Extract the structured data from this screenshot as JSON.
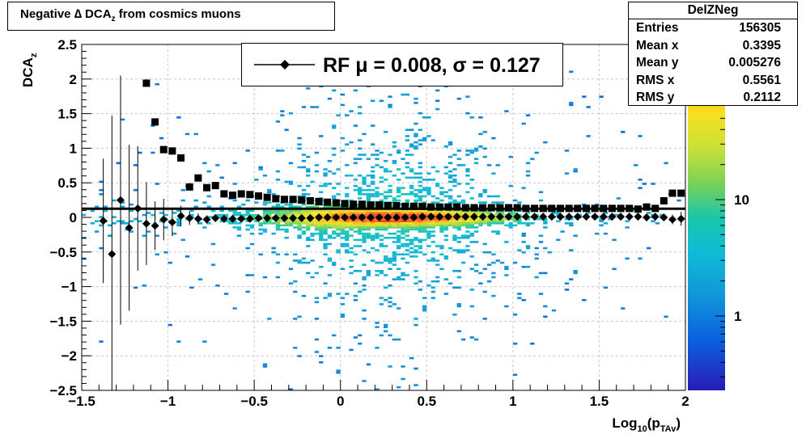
{
  "title": {
    "pre": "Negative ",
    "delta": "∆",
    "main": " DCA",
    "sub": "z",
    "post": " from cosmics muons"
  },
  "stats_box": {
    "name": "DelZNeg",
    "rows": [
      {
        "label": "Entries",
        "value": "156305"
      },
      {
        "label": "Mean x",
        "value": "0.3395"
      },
      {
        "label": "Mean y",
        "value": "0.005276"
      },
      {
        "label": "RMS x",
        "value": "0.5561"
      },
      {
        "label": "RMS y",
        "value": "0.2112"
      }
    ]
  },
  "legend": {
    "text": "RF μ =  0.008, σ =   0.127"
  },
  "colors": {
    "mean_markers": "#000000",
    "rms_markers": "#000000",
    "fit_line": "#000000"
  },
  "chart_data": {
    "type": "heatmap",
    "xlabel": {
      "base": "Log",
      "sub1": "10",
      "mid": "(p",
      "sub2": "TAv",
      "end": ")"
    },
    "ylabel": {
      "base": "DCA",
      "sub": "z"
    },
    "xlim": [
      -1.5,
      2
    ],
    "ylim": [
      -2.5,
      2.5
    ],
    "x_ticks": [
      -1.5,
      -1,
      -0.5,
      0,
      0.5,
      1,
      1.5,
      2
    ],
    "x_tick_labels": [
      "−1.5",
      "−1",
      "−0.5",
      "0",
      "0.5",
      "1",
      "1.5",
      "2"
    ],
    "y_ticks": [
      -2.5,
      -2,
      -1.5,
      -1,
      -0.5,
      0,
      0.5,
      1,
      1.5,
      2,
      2.5
    ],
    "y_tick_labels": [
      "−2.5",
      "−2",
      "−1.5",
      "−1",
      "−0.5",
      "0",
      "0.5",
      "1",
      "1.5",
      "2",
      "2.5"
    ],
    "z_scale": "log",
    "z_tick_labels": [
      {
        "value": 1,
        "label": "1"
      },
      {
        "value": 10,
        "label": "10"
      }
    ],
    "grid": true,
    "fit_line": {
      "y": 0.125
    },
    "mean_profile": {
      "marker": "diamond",
      "x": [
        -1.375,
        -1.325,
        -1.275,
        -1.225,
        -1.175,
        -1.125,
        -1.075,
        -1.025,
        -0.975,
        -0.925,
        -0.875,
        -0.825,
        -0.775,
        -0.725,
        -0.675,
        -0.625,
        -0.575,
        -0.525,
        -0.475,
        -0.425,
        -0.375,
        -0.325,
        -0.275,
        -0.225,
        -0.175,
        -0.125,
        -0.075,
        -0.025,
        0.025,
        0.075,
        0.125,
        0.175,
        0.225,
        0.275,
        0.325,
        0.375,
        0.425,
        0.475,
        0.525,
        0.575,
        0.625,
        0.675,
        0.725,
        0.775,
        0.825,
        0.875,
        0.925,
        0.975,
        1.025,
        1.075,
        1.125,
        1.175,
        1.225,
        1.275,
        1.325,
        1.375,
        1.425,
        1.475,
        1.525,
        1.575,
        1.625,
        1.675,
        1.725,
        1.775,
        1.825,
        1.875,
        1.925,
        1.975
      ],
      "y": [
        -0.05,
        -0.53,
        0.25,
        -0.15,
        0.13,
        -0.09,
        -0.12,
        -0.03,
        -0.07,
        0.02,
        -0.01,
        -0.02,
        -0.03,
        -0.01,
        -0.02,
        -0.02,
        -0.02,
        -0.02,
        -0.01,
        -0.01,
        -0.01,
        -0.01,
        -0.01,
        -0.01,
        -0.01,
        0.0,
        0.0,
        0.0,
        0.0,
        0.0,
        0.0,
        0.0,
        0.0,
        0.0,
        0.0,
        0.0,
        0.0,
        0.01,
        0.01,
        0.01,
        0.01,
        0.01,
        0.01,
        0.01,
        0.01,
        0.01,
        0.01,
        0.01,
        0.01,
        0.01,
        0.01,
        0.01,
        0.01,
        0.01,
        0.01,
        0.01,
        0.01,
        0.01,
        0.01,
        0.01,
        0.01,
        0.01,
        0.01,
        0.0,
        0.01,
        0.0,
        -0.03,
        -0.02
      ],
      "err": [
        0.9,
        2.0,
        1.8,
        1.2,
        0.9,
        0.6,
        0.35,
        0.3,
        0.2,
        0.15,
        0.1,
        0.08,
        0.06,
        0.05,
        0.04,
        0.03,
        0.03,
        0.02,
        0.02,
        0.02,
        0.02,
        0.02,
        0.02,
        0.02,
        0.02,
        0.02,
        0.02,
        0.02,
        0.02,
        0.02,
        0.02,
        0.02,
        0.02,
        0.02,
        0.02,
        0.02,
        0.02,
        0.02,
        0.02,
        0.02,
        0.02,
        0.02,
        0.02,
        0.02,
        0.02,
        0.02,
        0.02,
        0.02,
        0.02,
        0.02,
        0.02,
        0.02,
        0.02,
        0.02,
        0.02,
        0.02,
        0.02,
        0.02,
        0.02,
        0.02,
        0.02,
        0.02,
        0.03,
        0.03,
        0.04,
        0.05,
        0.07,
        0.1
      ]
    },
    "rms_profile": {
      "marker": "square",
      "x": [
        -1.125,
        -1.075,
        -1.025,
        -0.975,
        -0.925,
        -0.875,
        -0.825,
        -0.775,
        -0.725,
        -0.675,
        -0.625,
        -0.575,
        -0.525,
        -0.475,
        -0.425,
        -0.375,
        -0.325,
        -0.275,
        -0.225,
        -0.175,
        -0.125,
        -0.075,
        -0.025,
        0.025,
        0.075,
        0.125,
        0.175,
        0.225,
        0.275,
        0.325,
        0.375,
        0.425,
        0.475,
        0.525,
        0.575,
        0.625,
        0.675,
        0.725,
        0.775,
        0.825,
        0.875,
        0.925,
        0.975,
        1.025,
        1.075,
        1.125,
        1.175,
        1.225,
        1.275,
        1.325,
        1.375,
        1.425,
        1.475,
        1.525,
        1.575,
        1.625,
        1.675,
        1.725,
        1.775,
        1.825,
        1.875,
        1.925,
        1.975
      ],
      "y": [
        1.94,
        1.38,
        0.98,
        0.96,
        0.86,
        0.44,
        0.57,
        0.43,
        0.46,
        0.34,
        0.32,
        0.34,
        0.33,
        0.31,
        0.29,
        0.27,
        0.26,
        0.26,
        0.25,
        0.24,
        0.23,
        0.22,
        0.21,
        0.2,
        0.19,
        0.19,
        0.18,
        0.18,
        0.17,
        0.17,
        0.16,
        0.16,
        0.16,
        0.15,
        0.15,
        0.15,
        0.15,
        0.14,
        0.14,
        0.14,
        0.14,
        0.14,
        0.14,
        0.14,
        0.13,
        0.13,
        0.13,
        0.13,
        0.13,
        0.13,
        0.13,
        0.13,
        0.13,
        0.13,
        0.13,
        0.13,
        0.13,
        0.12,
        0.15,
        0.13,
        0.24,
        0.35,
        0.35
      ]
    }
  }
}
